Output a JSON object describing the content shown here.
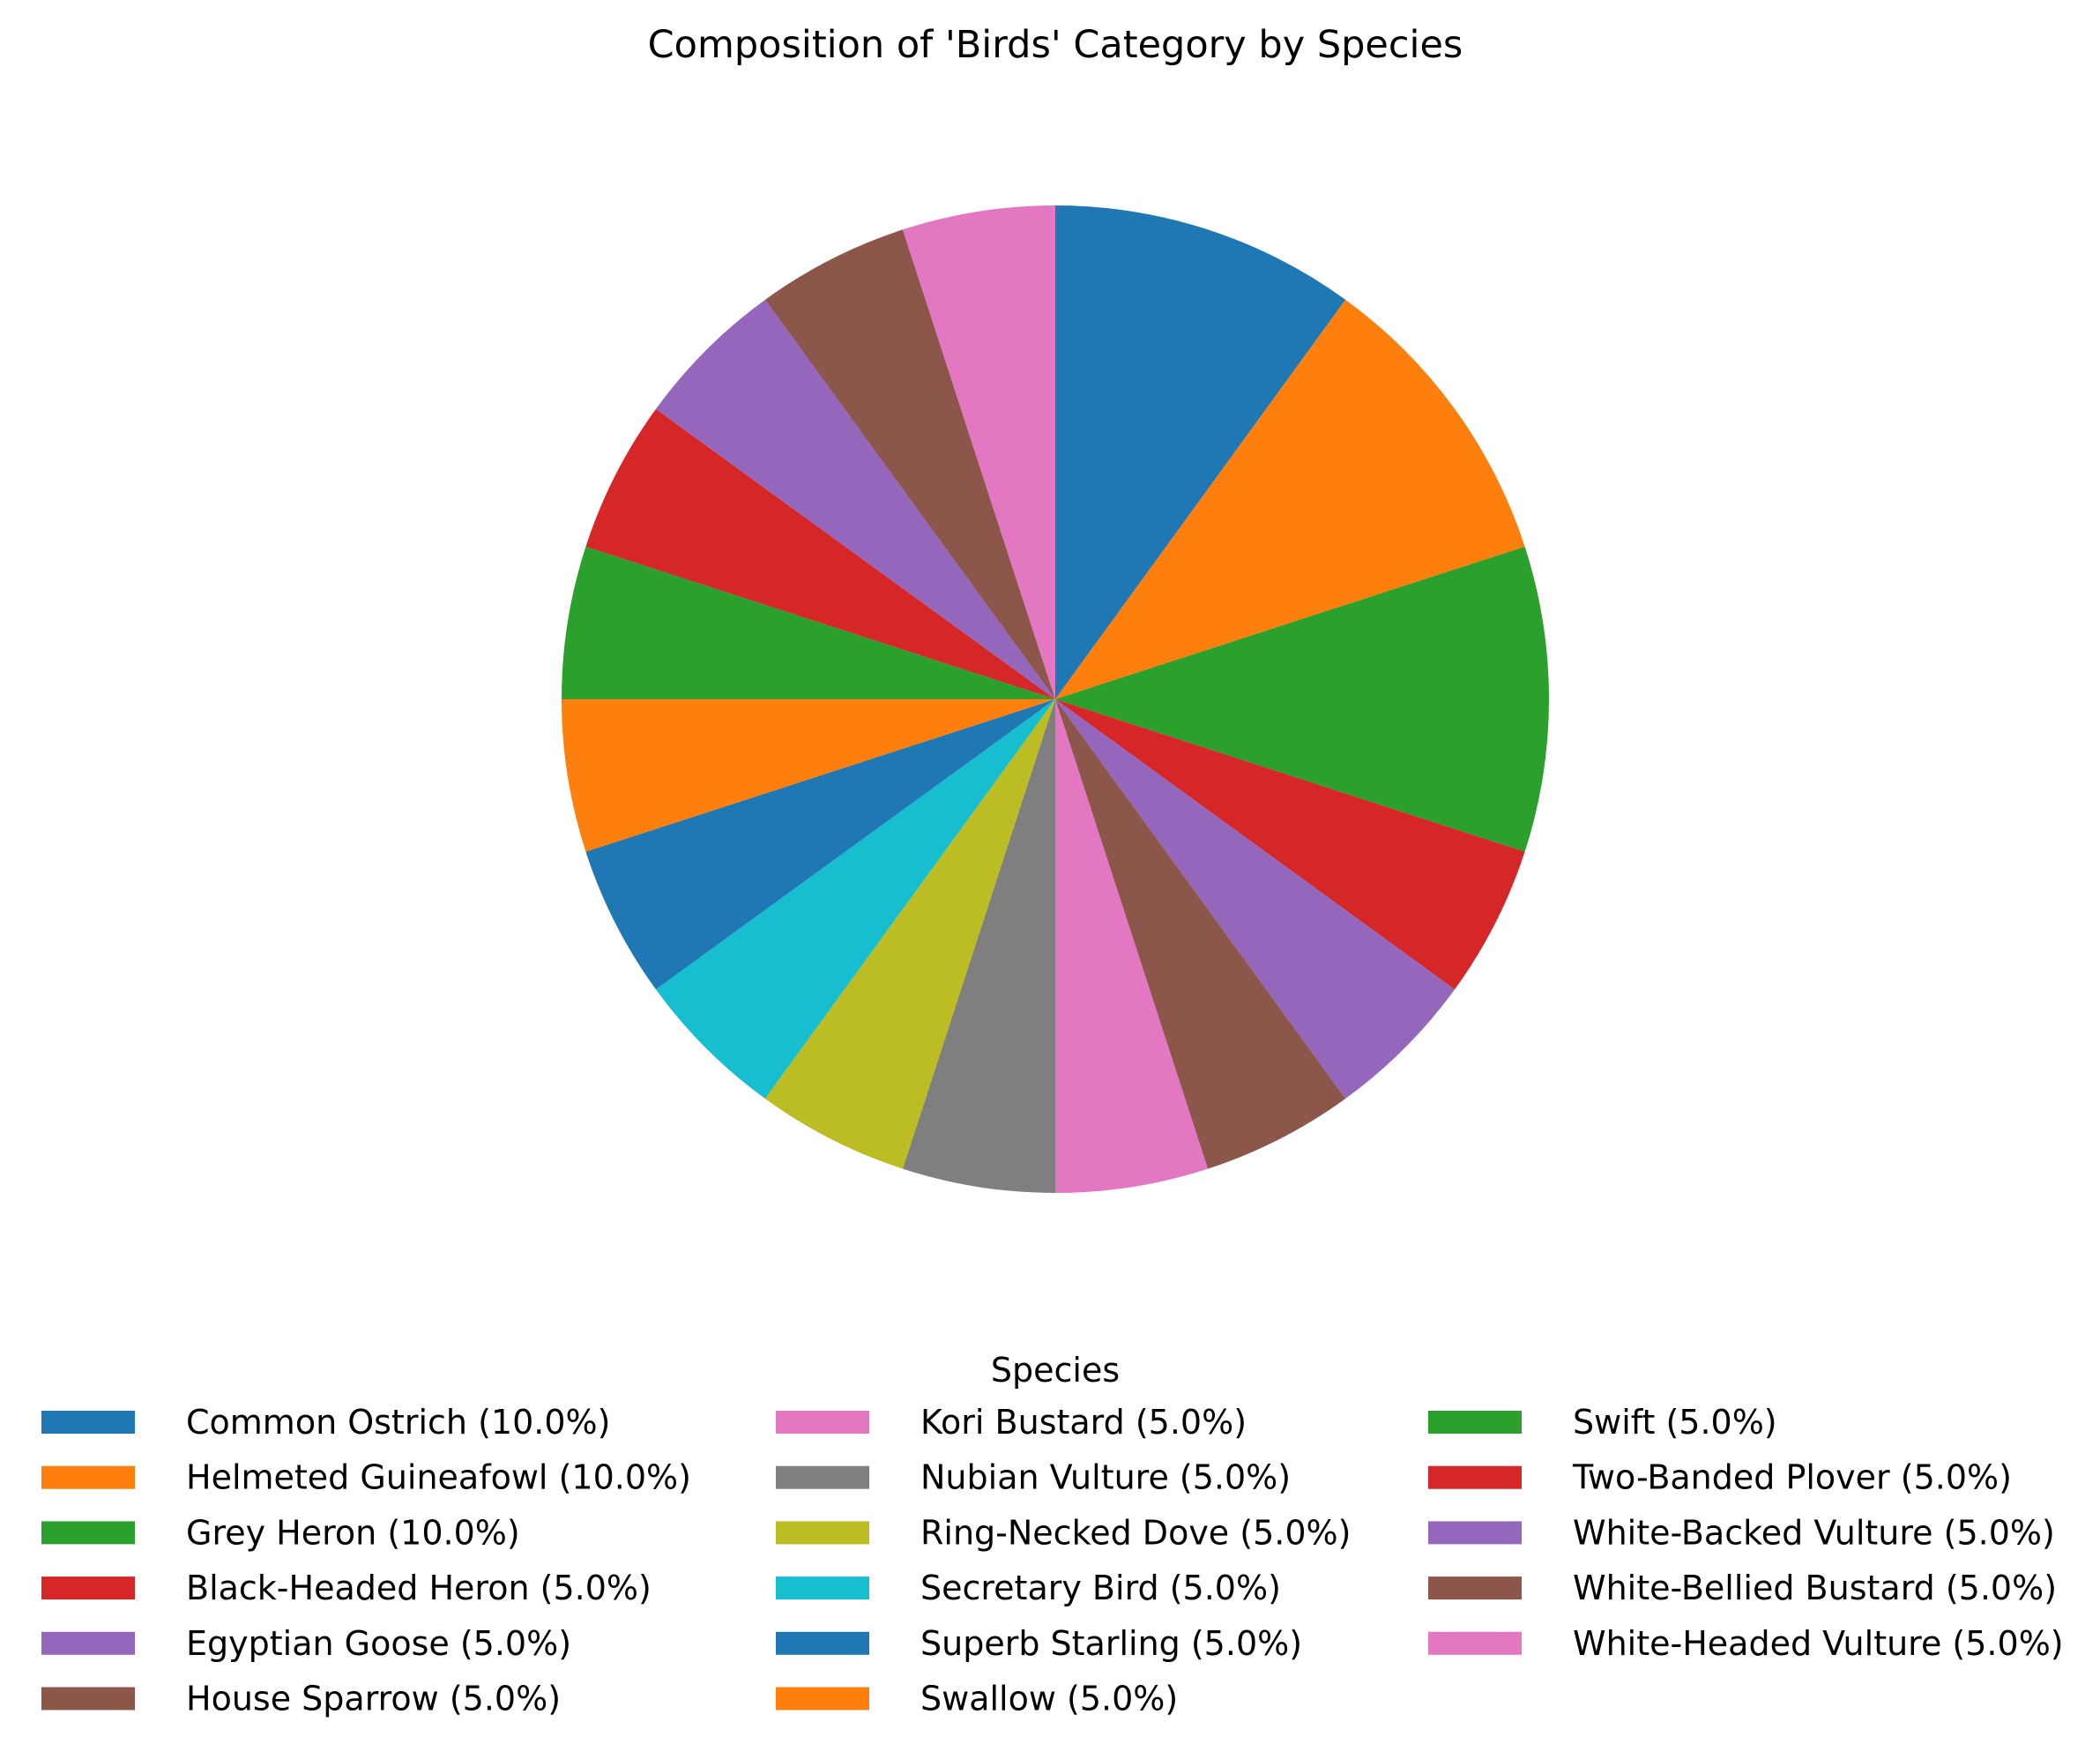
{
  "chart_data": {
    "type": "pie",
    "title": "Composition of 'Birds' Category by Species",
    "legend": {
      "title": "Species",
      "placement": "bottom",
      "columns": 3
    },
    "start_angle_deg": 90,
    "direction": "clockwise",
    "slices": [
      {
        "label": "Common Ostrich (10.0%)",
        "value": 10.0,
        "color": "#1f77b4"
      },
      {
        "label": "Helmeted Guineafowl (10.0%)",
        "value": 10.0,
        "color": "#ff7f0e"
      },
      {
        "label": "Grey Heron (10.0%)",
        "value": 10.0,
        "color": "#2ca02c"
      },
      {
        "label": "Black-Headed Heron (5.0%)",
        "value": 5.0,
        "color": "#d62728"
      },
      {
        "label": "Egyptian Goose (5.0%)",
        "value": 5.0,
        "color": "#9467bd"
      },
      {
        "label": "House Sparrow (5.0%)",
        "value": 5.0,
        "color": "#8c564b"
      },
      {
        "label": "Kori Bustard (5.0%)",
        "value": 5.0,
        "color": "#e377c2"
      },
      {
        "label": "Nubian Vulture (5.0%)",
        "value": 5.0,
        "color": "#7f7f7f"
      },
      {
        "label": "Ring-Necked Dove (5.0%)",
        "value": 5.0,
        "color": "#bcbd22"
      },
      {
        "label": "Secretary Bird (5.0%)",
        "value": 5.0,
        "color": "#17becf"
      },
      {
        "label": "Superb Starling (5.0%)",
        "value": 5.0,
        "color": "#1f77b4"
      },
      {
        "label": "Swallow (5.0%)",
        "value": 5.0,
        "color": "#ff7f0e"
      },
      {
        "label": "Swift (5.0%)",
        "value": 5.0,
        "color": "#2ca02c"
      },
      {
        "label": "Two-Banded Plover (5.0%)",
        "value": 5.0,
        "color": "#d62728"
      },
      {
        "label": "White-Backed Vulture (5.0%)",
        "value": 5.0,
        "color": "#9467bd"
      },
      {
        "label": "White-Bellied Bustard (5.0%)",
        "value": 5.0,
        "color": "#8c564b"
      },
      {
        "label": "White-Headed Vulture (5.0%)",
        "value": 5.0,
        "color": "#e377c2"
      }
    ]
  }
}
